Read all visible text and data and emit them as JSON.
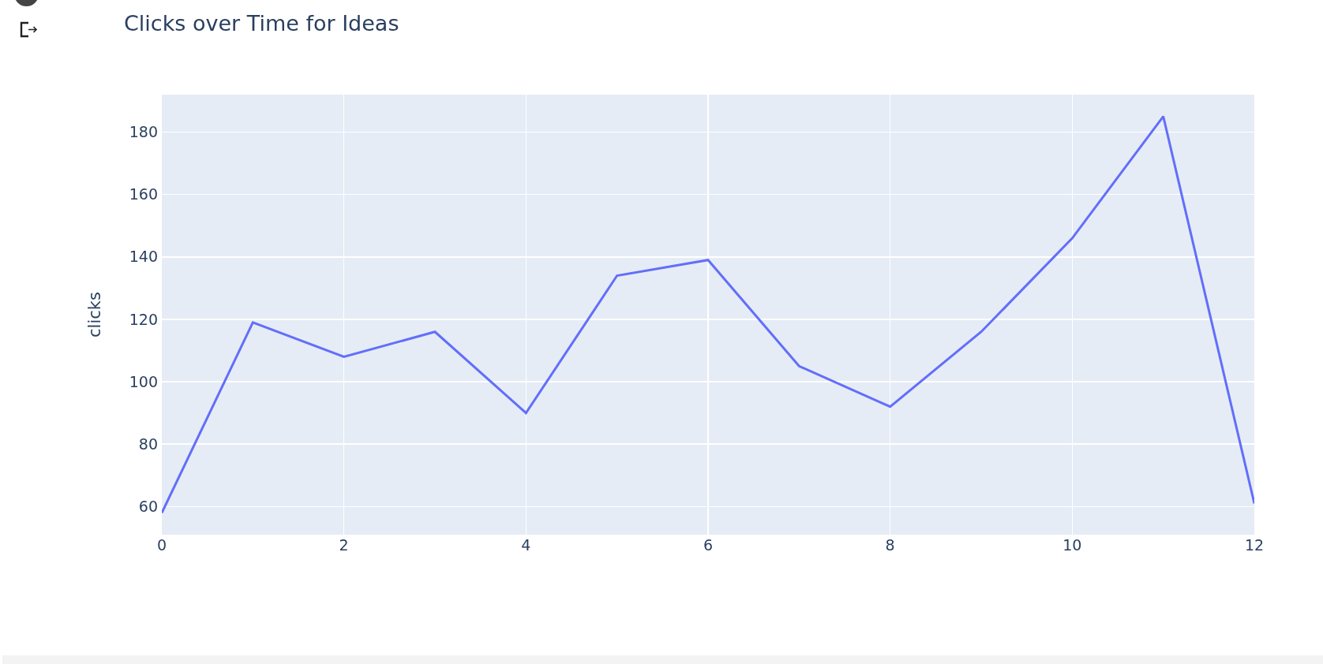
{
  "chart_data": {
    "type": "line",
    "title": "Clicks over Time for Ideas",
    "ylabel": "clicks",
    "x": [
      0,
      1,
      2,
      3,
      4,
      5,
      6,
      7,
      8,
      9,
      10,
      11,
      12
    ],
    "series": [
      {
        "color": "#636efa",
        "values": [
          58,
          119,
          108,
          116,
          90,
          134,
          139,
          105,
          92,
          116,
          146,
          185,
          61
        ]
      }
    ],
    "xlim": [
      0,
      12
    ],
    "ylim": [
      51,
      192
    ],
    "xticks": [
      0,
      2,
      4,
      6,
      8,
      10,
      12
    ],
    "yticks": [
      60,
      80,
      100,
      120,
      140,
      160,
      180
    ],
    "grid": true
  }
}
